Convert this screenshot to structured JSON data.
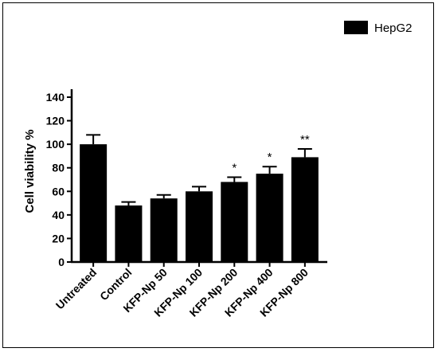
{
  "chart_data": {
    "type": "bar",
    "categories": [
      "Untreated",
      "Control",
      "KFP-Np 50",
      "KFP-Np 100",
      "KFP-Np 200",
      "KFP-Np 400",
      "KFP-Np 800"
    ],
    "series": [
      {
        "name": "HepG2",
        "values": [
          100,
          48,
          54,
          60,
          68,
          75,
          89
        ],
        "errors": [
          8,
          3,
          3,
          4,
          4,
          6,
          7
        ],
        "annotations": [
          "",
          "",
          "",
          "",
          "*",
          "*",
          "**"
        ]
      }
    ],
    "ylabel": "Cell viability %",
    "xlabel": "",
    "ylim": [
      0,
      140
    ],
    "yticks": [
      0,
      20,
      40,
      60,
      80,
      100,
      120,
      140
    ],
    "legend_position": "top-right",
    "grid": false,
    "bar_color": "#000000"
  }
}
